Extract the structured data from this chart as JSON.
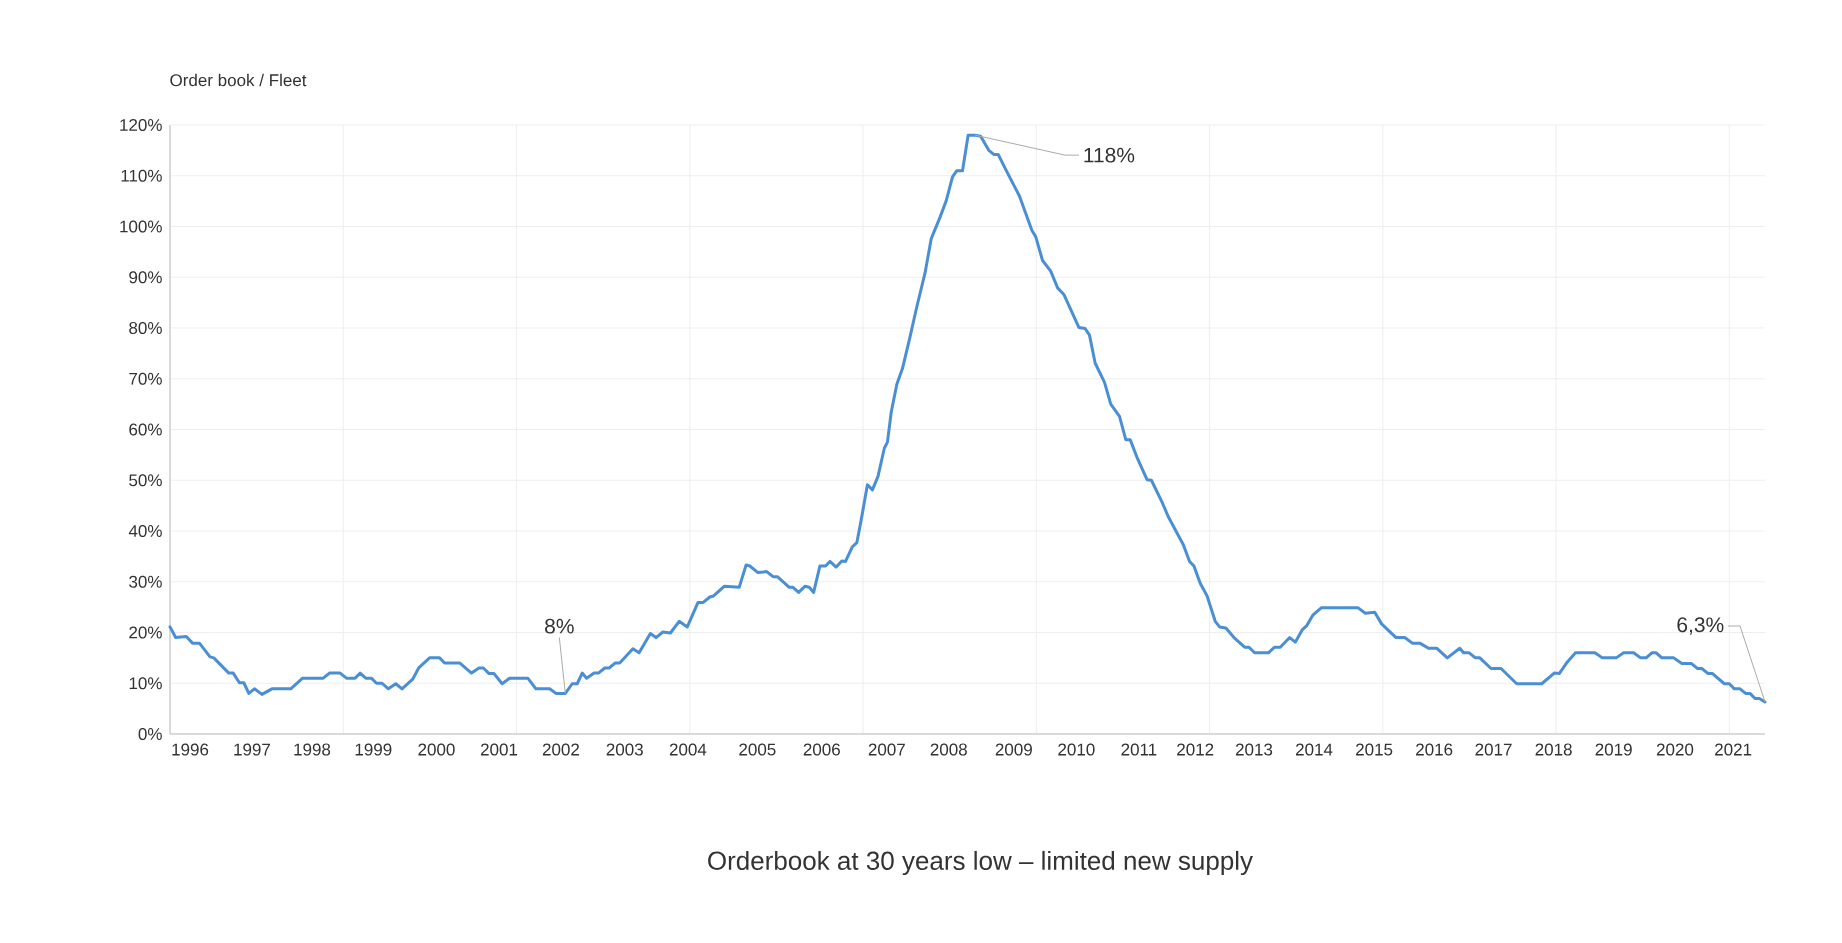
{
  "chart_data": {
    "type": "line",
    "title": "Orderbook at 30 years low – limited new supply",
    "ylabel": "Order book / Fleet",
    "xlim": [
      1996,
      2021.5
    ],
    "ylim": [
      0,
      120
    ],
    "xticks": [
      {
        "value": 1996,
        "label": null
      },
      {
        "value": 1998.77,
        "label": null
      },
      {
        "value": 2001.54,
        "label": null
      },
      {
        "value": 2004.31,
        "label": null
      },
      {
        "value": 2007.08,
        "label": null
      },
      {
        "value": 2009.85,
        "label": null
      },
      {
        "value": 2012.62,
        "label": null
      },
      {
        "value": 2015.39,
        "label": null
      },
      {
        "value": 2018.16,
        "label": null
      },
      {
        "value": 2020.93,
        "label": null
      },
      {
        "value": 1996.32,
        "label": "1996"
      },
      {
        "value": 1997.31,
        "label": "1997"
      },
      {
        "value": 1998.27,
        "label": "1998"
      },
      {
        "value": 1999.25,
        "label": "1999"
      },
      {
        "value": 2000.26,
        "label": "2000"
      },
      {
        "value": 2001.26,
        "label": "2001"
      },
      {
        "value": 2002.25,
        "label": "2002"
      },
      {
        "value": 2003.27,
        "label": "2003"
      },
      {
        "value": 2004.28,
        "label": "2004"
      },
      {
        "value": 2005.39,
        "label": "2005"
      },
      {
        "value": 2006.42,
        "label": "2006"
      },
      {
        "value": 2007.46,
        "label": "2007"
      },
      {
        "value": 2008.45,
        "label": "2008"
      },
      {
        "value": 2009.49,
        "label": "2009"
      },
      {
        "value": 2010.49,
        "label": "2010"
      },
      {
        "value": 2011.49,
        "label": "2011"
      },
      {
        "value": 2012.39,
        "label": "2012"
      },
      {
        "value": 2013.33,
        "label": "2013"
      },
      {
        "value": 2014.29,
        "label": "2014"
      },
      {
        "value": 2015.25,
        "label": "2015"
      },
      {
        "value": 2016.21,
        "label": "2016"
      },
      {
        "value": 2017.16,
        "label": "2017"
      },
      {
        "value": 2018.12,
        "label": "2018"
      },
      {
        "value": 2019.08,
        "label": "2019"
      },
      {
        "value": 2020.06,
        "label": "2020"
      },
      {
        "value": 2020.99,
        "label": "2021"
      }
    ],
    "yticks": [
      {
        "value": 0,
        "label": "0%"
      },
      {
        "value": 10,
        "label": "10%"
      },
      {
        "value": 20,
        "label": "20%"
      },
      {
        "value": 30,
        "label": "30%"
      },
      {
        "value": 40,
        "label": "40%"
      },
      {
        "value": 50,
        "label": "50%"
      },
      {
        "value": 60,
        "label": "60%"
      },
      {
        "value": 70,
        "label": "70%"
      },
      {
        "value": 80,
        "label": "80%"
      },
      {
        "value": 90,
        "label": "90%"
      },
      {
        "value": 100,
        "label": "100%"
      },
      {
        "value": 110,
        "label": "110%"
      },
      {
        "value": 120,
        "label": "120%"
      }
    ],
    "grid": true,
    "marker": "none",
    "line_style": "solid",
    "annotations": [
      {
        "text": "8%",
        "x": 2002.32,
        "y": 8
      },
      {
        "text": "118%",
        "x": 2008.87,
        "y": 118
      },
      {
        "text": "6,3%",
        "x": 2021.5,
        "y": 6.3
      }
    ],
    "series": [
      {
        "color": "#4a8fd4",
        "x": [
          1996.0,
          1996.09,
          1996.26,
          1996.36,
          1996.47,
          1996.64,
          1996.7,
          1996.94,
          1997.01,
          1997.11,
          1997.18,
          1997.26,
          1997.35,
          1997.47,
          1997.63,
          1997.93,
          1998.12,
          1998.45,
          1998.55,
          1998.72,
          1998.82,
          1998.96,
          1999.04,
          1999.13,
          1999.22,
          1999.3,
          1999.39,
          1999.49,
          1999.61,
          1999.71,
          1999.88,
          1999.98,
          2000.15,
          2000.31,
          2000.39,
          2000.63,
          2000.82,
          2000.94,
          2001.01,
          2001.1,
          2001.18,
          2001.31,
          2001.43,
          2001.72,
          2001.85,
          2002.07,
          2002.17,
          2002.32,
          2002.43,
          2002.51,
          2002.59,
          2002.66,
          2002.78,
          2002.85,
          2002.95,
          2003.02,
          2003.12,
          2003.19,
          2003.4,
          2003.5,
          2003.68,
          2003.77,
          2003.88,
          2004.0,
          2004.14,
          2004.27,
          2004.44,
          2004.52,
          2004.63,
          2004.69,
          2004.86,
          2005.1,
          2005.21,
          2005.27,
          2005.4,
          2005.54,
          2005.64,
          2005.71,
          2005.9,
          2005.96,
          2006.05,
          2006.15,
          2006.22,
          2006.29,
          2006.39,
          2006.48,
          2006.55,
          2006.65,
          2006.74,
          2006.8,
          2006.91,
          2006.98,
          2007.04,
          2007.15,
          2007.23,
          2007.32,
          2007.42,
          2007.47,
          2007.53,
          2007.62,
          2007.71,
          2007.83,
          2007.93,
          2008.07,
          2008.17,
          2008.31,
          2008.41,
          2008.51,
          2008.58,
          2008.67,
          2008.76,
          2008.87,
          2008.96,
          2009.09,
          2009.17,
          2009.24,
          2009.37,
          2009.58,
          2009.78,
          2009.84,
          2009.95,
          2010.08,
          2010.19,
          2010.29,
          2010.53,
          2010.63,
          2010.7,
          2010.79,
          2010.94,
          2011.04,
          2011.18,
          2011.28,
          2011.35,
          2011.47,
          2011.62,
          2011.69,
          2011.86,
          2011.96,
          2012.2,
          2012.3,
          2012.37,
          2012.47,
          2012.58,
          2012.71,
          2012.78,
          2012.88,
          2013.01,
          2013.18,
          2013.25,
          2013.34,
          2013.56,
          2013.66,
          2013.75,
          2013.9,
          2013.99,
          2014.1,
          2014.17,
          2014.27,
          2014.41,
          2014.99,
          2015.11,
          2015.26,
          2015.37,
          2015.6,
          2015.74,
          2015.86,
          2015.98,
          2016.12,
          2016.25,
          2016.42,
          2016.62,
          2016.68,
          2016.77,
          2016.87,
          2016.94,
          2017.12,
          2017.28,
          2017.53,
          2017.93,
          2018.13,
          2018.21,
          2018.34,
          2018.47,
          2018.78,
          2018.9,
          2019.12,
          2019.24,
          2019.4,
          2019.51,
          2019.6,
          2019.69,
          2019.76,
          2019.85,
          2020.04,
          2020.17,
          2020.32,
          2020.42,
          2020.49,
          2020.59,
          2020.66,
          2020.85,
          2020.93,
          2021.01,
          2021.1,
          2021.19,
          2021.26,
          2021.34,
          2021.41,
          2021.5
        ],
        "values": [
          21.1,
          19.0,
          19.2,
          17.9,
          17.9,
          15.2,
          15.0,
          12.0,
          12.0,
          10.1,
          10.1,
          8.0,
          8.9,
          7.8,
          8.9,
          8.9,
          11.0,
          11.0,
          12.0,
          12.0,
          11.0,
          11.0,
          12.0,
          11.0,
          11.0,
          10.0,
          10.0,
          8.9,
          9.9,
          8.9,
          10.8,
          13.1,
          15.0,
          15.0,
          14.0,
          14.0,
          12.0,
          13.0,
          13.0,
          11.9,
          11.9,
          9.9,
          11.0,
          11.0,
          8.9,
          8.9,
          8.0,
          8.0,
          9.9,
          9.9,
          12.0,
          11.0,
          12.0,
          12.0,
          13.0,
          13.0,
          14.0,
          14.0,
          16.8,
          16.0,
          19.8,
          19.0,
          20.1,
          19.9,
          22.2,
          21.1,
          25.9,
          25.9,
          27.0,
          27.2,
          29.1,
          28.9,
          33.3,
          33.1,
          31.8,
          32.0,
          31.0,
          31.0,
          28.9,
          28.9,
          27.9,
          29.1,
          28.9,
          27.9,
          33.1,
          33.1,
          34.0,
          32.9,
          34.1,
          34.0,
          36.9,
          37.7,
          41.5,
          49.1,
          48.1,
          50.8,
          56.3,
          57.5,
          63.4,
          68.9,
          72.0,
          78.2,
          83.7,
          90.8,
          97.6,
          101.8,
          105.1,
          109.8,
          111.0,
          111.0,
          118,
          118,
          117.8,
          115.0,
          114.2,
          114.2,
          111.0,
          106.0,
          99.2,
          98.0,
          93.3,
          91.2,
          87.9,
          86.6,
          80.1,
          79.9,
          78.6,
          73.1,
          69.3,
          65.0,
          62.6,
          58.0,
          58.0,
          54.2,
          50.1,
          50.0,
          45.7,
          42.8,
          37.3,
          34.0,
          33.1,
          29.7,
          27.2,
          22.2,
          21.1,
          20.9,
          19.0,
          17.1,
          17.1,
          16.0,
          16.0,
          17.1,
          17.1,
          19.0,
          18.1,
          20.5,
          21.3,
          23.4,
          24.9,
          24.9,
          23.8,
          24.0,
          21.7,
          19.0,
          19.0,
          17.9,
          17.9,
          16.9,
          16.9,
          15.0,
          16.9,
          16.0,
          16.0,
          15.0,
          15.0,
          12.9,
          12.9,
          9.9,
          9.9,
          12.0,
          11.9,
          14.2,
          16.0,
          16.0,
          15.0,
          15.0,
          16.0,
          16.0,
          15.0,
          15.0,
          16.0,
          16.0,
          15.0,
          15.0,
          13.9,
          13.9,
          12.9,
          12.9,
          11.9,
          11.9,
          9.9,
          9.9,
          8.9,
          8.9,
          8.0,
          8.0,
          7.0,
          7.0,
          6.3
        ]
      }
    ]
  }
}
